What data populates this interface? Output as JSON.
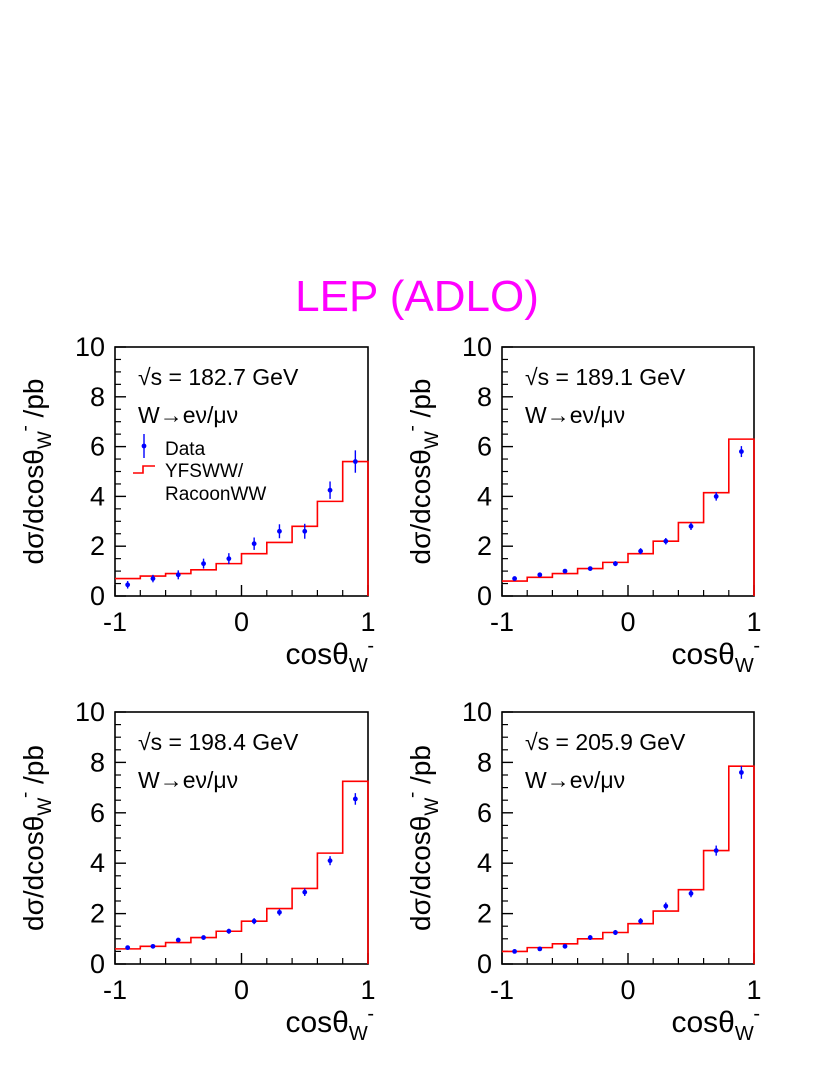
{
  "figure": {
    "title": "LEP (ADLO)",
    "title_color": "#ff00ff",
    "data_color": "#0000ff",
    "model_color": "#ff0000"
  },
  "chart_data": [
    {
      "type": "step+errorbar",
      "annotation": "√s = 182.7 GeV",
      "channel": "W→eν/μν",
      "xlabel": "cosθ",
      "xlabel_sub": "W",
      "xlabel_sup": "-",
      "ylabel": "dσ/dcosθ",
      "ylabel_sub": "W",
      "ylabel_sup": "-",
      "ylabel_unit": " /pb",
      "xlim": [
        -1,
        1
      ],
      "ylim": [
        0,
        10
      ],
      "xticks": [
        "-1",
        "0",
        "1"
      ],
      "yticks": [
        "0",
        "2",
        "4",
        "6",
        "8",
        "10"
      ],
      "legend": {
        "data": "Data",
        "model": [
          "YFSWW/",
          "RacoonWW"
        ]
      },
      "bin_edges": [
        -1,
        -0.8,
        -0.6,
        -0.4,
        -0.2,
        0,
        0.2,
        0.4,
        0.6,
        0.8,
        1
      ],
      "series": [
        {
          "name": "YFSWW/RacoonWW",
          "kind": "step",
          "values": [
            0.7,
            0.8,
            0.9,
            1.05,
            1.3,
            1.7,
            2.15,
            2.8,
            3.8,
            5.4
          ]
        },
        {
          "name": "Data",
          "kind": "points",
          "x": [
            -0.9,
            -0.7,
            -0.5,
            -0.3,
            -0.1,
            0.1,
            0.3,
            0.5,
            0.7,
            0.9
          ],
          "values": [
            0.45,
            0.7,
            0.85,
            1.3,
            1.5,
            2.1,
            2.6,
            2.6,
            4.25,
            5.4
          ],
          "errors": [
            0.15,
            0.15,
            0.18,
            0.2,
            0.22,
            0.25,
            0.28,
            0.3,
            0.35,
            0.45
          ]
        }
      ]
    },
    {
      "type": "step+errorbar",
      "annotation": "√s = 189.1 GeV",
      "channel": "W→eν/μν",
      "xlabel": "cosθ",
      "xlabel_sub": "W",
      "xlabel_sup": "-",
      "ylabel": "dσ/dcosθ",
      "ylabel_sub": "W",
      "ylabel_sup": "-",
      "ylabel_unit": " /pb",
      "xlim": [
        -1,
        1
      ],
      "ylim": [
        0,
        10
      ],
      "xticks": [
        "-1",
        "0",
        "1"
      ],
      "yticks": [
        "0",
        "2",
        "4",
        "6",
        "8",
        "10"
      ],
      "bin_edges": [
        -1,
        -0.8,
        -0.6,
        -0.4,
        -0.2,
        0,
        0.2,
        0.4,
        0.6,
        0.8,
        1
      ],
      "series": [
        {
          "name": "YFSWW/RacoonWW",
          "kind": "step",
          "values": [
            0.6,
            0.75,
            0.9,
            1.1,
            1.35,
            1.7,
            2.2,
            2.95,
            4.15,
            6.3
          ]
        },
        {
          "name": "Data",
          "kind": "points",
          "x": [
            -0.9,
            -0.7,
            -0.5,
            -0.3,
            -0.1,
            0.1,
            0.3,
            0.5,
            0.7,
            0.9
          ],
          "values": [
            0.7,
            0.85,
            1.0,
            1.1,
            1.3,
            1.8,
            2.2,
            2.8,
            4.0,
            5.8
          ],
          "errors": [
            0.07,
            0.07,
            0.08,
            0.08,
            0.1,
            0.12,
            0.13,
            0.15,
            0.17,
            0.22
          ]
        }
      ]
    },
    {
      "type": "step+errorbar",
      "annotation": "√s = 198.4 GeV",
      "channel": "W→eν/μν",
      "xlabel": "cosθ",
      "xlabel_sub": "W",
      "xlabel_sup": "-",
      "ylabel": "dσ/dcosθ",
      "ylabel_sub": "W",
      "ylabel_sup": "-",
      "ylabel_unit": " /pb",
      "xlim": [
        -1,
        1
      ],
      "ylim": [
        0,
        10
      ],
      "xticks": [
        "-1",
        "0",
        "1"
      ],
      "yticks": [
        "0",
        "2",
        "4",
        "6",
        "8",
        "10"
      ],
      "bin_edges": [
        -1,
        -0.8,
        -0.6,
        -0.4,
        -0.2,
        0,
        0.2,
        0.4,
        0.6,
        0.8,
        1
      ],
      "series": [
        {
          "name": "YFSWW/RacoonWW",
          "kind": "step",
          "values": [
            0.6,
            0.7,
            0.85,
            1.05,
            1.3,
            1.7,
            2.2,
            3.0,
            4.4,
            7.25
          ]
        },
        {
          "name": "Data",
          "kind": "points",
          "x": [
            -0.9,
            -0.7,
            -0.5,
            -0.3,
            -0.1,
            0.1,
            0.3,
            0.5,
            0.7,
            0.9
          ],
          "values": [
            0.65,
            0.7,
            0.95,
            1.05,
            1.3,
            1.7,
            2.05,
            2.85,
            4.1,
            6.55
          ],
          "errors": [
            0.07,
            0.07,
            0.08,
            0.08,
            0.1,
            0.12,
            0.13,
            0.15,
            0.18,
            0.23
          ]
        }
      ]
    },
    {
      "type": "step+errorbar",
      "annotation": "√s = 205.9 GeV",
      "channel": "W→eν/μν",
      "xlabel": "cosθ",
      "xlabel_sub": "W",
      "xlabel_sup": "-",
      "ylabel": "dσ/dcosθ",
      "ylabel_sub": "W",
      "ylabel_sup": "-",
      "ylabel_unit": " /pb",
      "xlim": [
        -1,
        1
      ],
      "ylim": [
        0,
        10
      ],
      "xticks": [
        "-1",
        "0",
        "1"
      ],
      "yticks": [
        "0",
        "2",
        "4",
        "6",
        "8",
        "10"
      ],
      "bin_edges": [
        -1,
        -0.8,
        -0.6,
        -0.4,
        -0.2,
        0,
        0.2,
        0.4,
        0.6,
        0.8,
        1
      ],
      "series": [
        {
          "name": "YFSWW/RacoonWW",
          "kind": "step",
          "values": [
            0.5,
            0.65,
            0.8,
            1.0,
            1.25,
            1.6,
            2.1,
            2.95,
            4.5,
            7.85
          ]
        },
        {
          "name": "Data",
          "kind": "points",
          "x": [
            -0.9,
            -0.7,
            -0.5,
            -0.3,
            -0.1,
            0.1,
            0.3,
            0.5,
            0.7,
            0.9
          ],
          "values": [
            0.5,
            0.6,
            0.7,
            1.05,
            1.25,
            1.7,
            2.3,
            2.8,
            4.5,
            7.6
          ],
          "errors": [
            0.06,
            0.07,
            0.08,
            0.09,
            0.1,
            0.12,
            0.14,
            0.15,
            0.2,
            0.25
          ]
        }
      ]
    }
  ]
}
